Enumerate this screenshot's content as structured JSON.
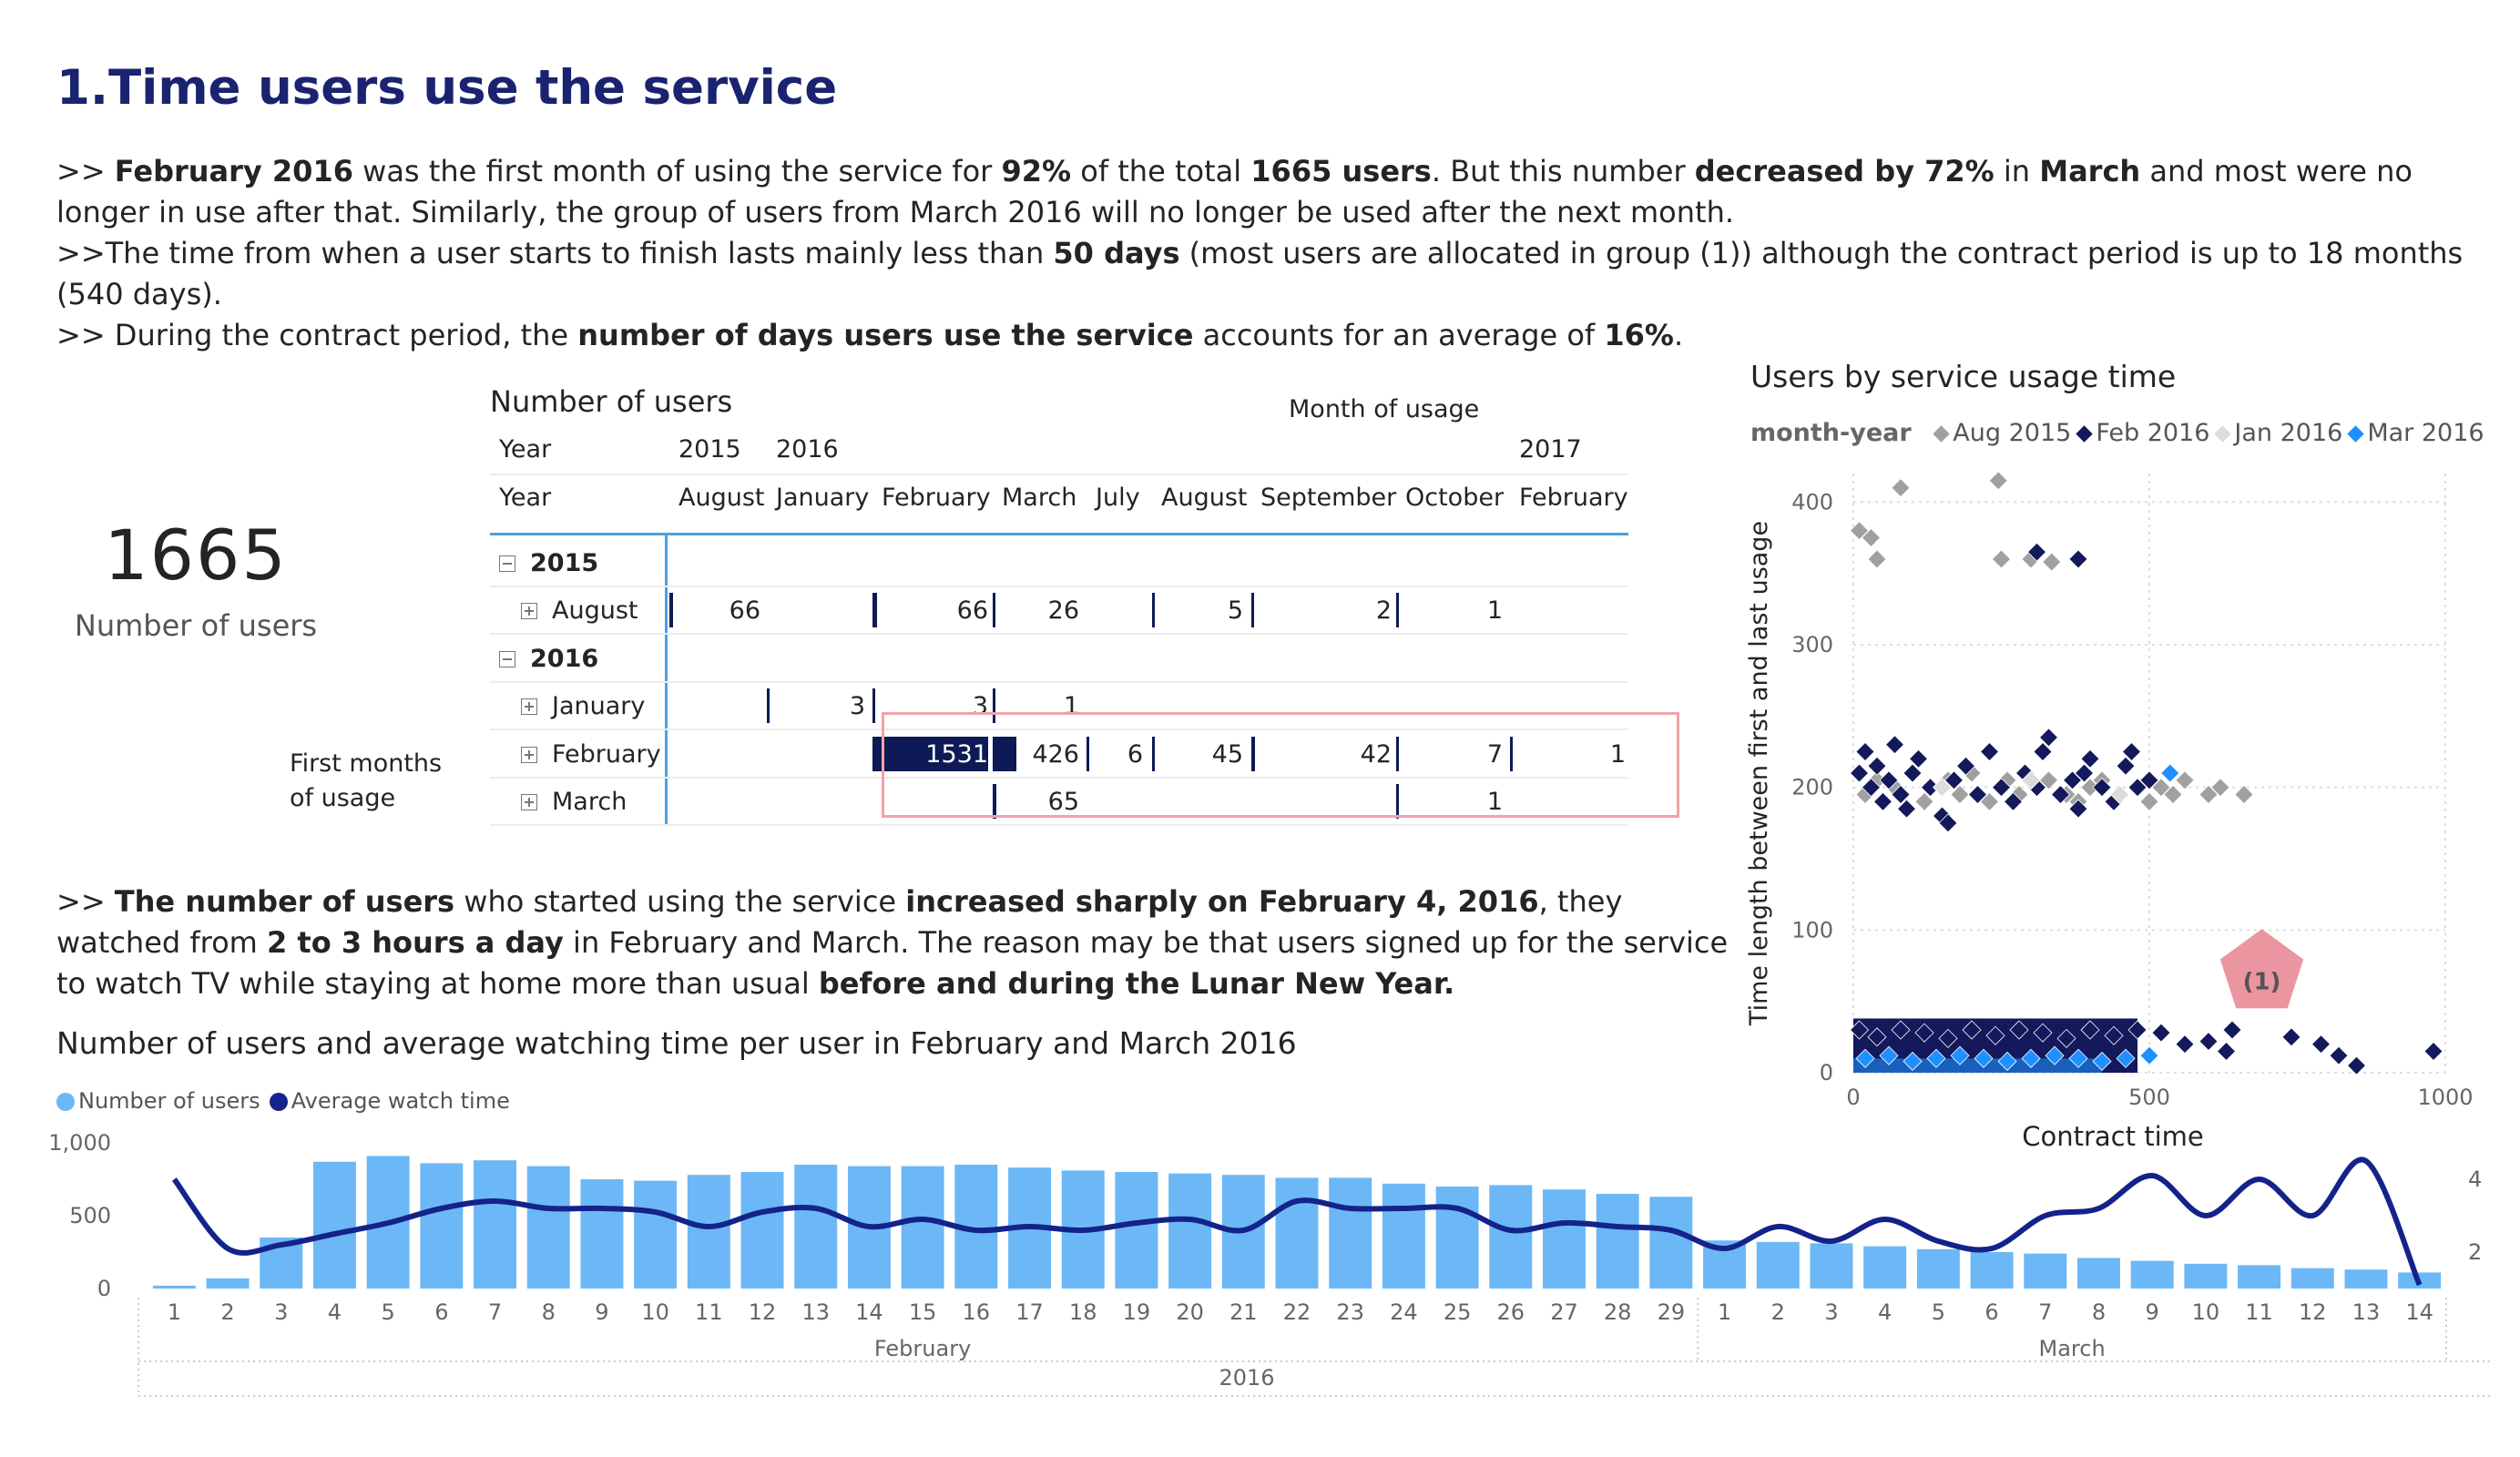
{
  "page": {
    "title": "1.Time users use the service",
    "intro": [
      [
        {
          "t": ">> "
        },
        {
          "t": "February 2016",
          "b": true
        },
        {
          "t": " was the first month of using the service for "
        },
        {
          "t": "92%",
          "b": true
        },
        {
          "t": " of the total "
        },
        {
          "t": "1665 users",
          "b": true
        },
        {
          "t": ". But this number "
        },
        {
          "t": "decreased by 72%",
          "b": true
        },
        {
          "t": " in "
        },
        {
          "t": "March",
          "b": true
        },
        {
          "t": " and most were no longer in use after that. Similarly, the group of users from March 2016 will no longer be used after the next month."
        }
      ],
      [
        {
          "t": ">>The time from when a user starts to finish lasts mainly less than "
        },
        {
          "t": "50 days",
          "b": true
        },
        {
          "t": " (most users are allocated in group (1)) although the contract period is up to 18 months (540 days)."
        }
      ],
      [
        {
          "t": ">> During the contract period, the "
        },
        {
          "t": "number of days users use the service",
          "b": true
        },
        {
          "t": " accounts for an average of "
        },
        {
          "t": "16%",
          "b": true
        },
        {
          "t": "."
        }
      ]
    ],
    "mid_text": [
      [
        {
          "t": ">> "
        },
        {
          "t": "The number of users",
          "b": true
        },
        {
          "t": " who started using the service "
        },
        {
          "t": "increased sharply on February 4, 2016",
          "b": true
        },
        {
          "t": ", they watched from "
        },
        {
          "t": "2 to 3 hours a day",
          "b": true
        },
        {
          "t": " in February and March. The reason may be that users signed up for the service to watch TV while staying at home more than usual "
        },
        {
          "t": "before and during the Lunar New Year.",
          "b": true
        }
      ]
    ]
  },
  "kpi": {
    "value": "1665",
    "label": "Number of users"
  },
  "side_label": "First months of usage",
  "matrix": {
    "title": "Number of users",
    "column_group_label": "Month of usage",
    "year_row_header": "Year",
    "month_row_header": "Year",
    "column_years": [
      "2015",
      "2016",
      "",
      "",
      "",
      "",
      "",
      "",
      "2017"
    ],
    "columns": [
      "August",
      "January",
      "February",
      "March",
      "July",
      "August",
      "September",
      "October",
      "February"
    ],
    "rows": [
      {
        "label": "2015",
        "level": 0
      },
      {
        "label": "August",
        "level": 1,
        "cells": [
          "66",
          "",
          "66",
          "26",
          "",
          "5",
          "2",
          "1",
          ""
        ]
      },
      {
        "label": "2016",
        "level": 0
      },
      {
        "label": "January",
        "level": 1,
        "cells": [
          "",
          "3",
          "3",
          "1",
          "",
          "",
          "",
          "",
          ""
        ]
      },
      {
        "label": "February",
        "level": 1,
        "cells": [
          "",
          "",
          "1531",
          "426",
          "6",
          "45",
          "42",
          "7",
          "1"
        ]
      },
      {
        "label": "March",
        "level": 1,
        "cells": [
          "",
          "",
          "",
          "65",
          "",
          "",
          "",
          "1",
          ""
        ]
      }
    ]
  },
  "bar_line_chart": {
    "title": "Number of users and average watching time per user in February and March 2016",
    "legend": [
      {
        "label": "Number of users",
        "color": "#6cb8f6"
      },
      {
        "label": "Average watch time",
        "color": "#14238a"
      }
    ],
    "y_ticks": [
      "0",
      "500",
      "1,000"
    ],
    "y2_ticks": [
      "2",
      "4"
    ],
    "month_labels": [
      "February",
      "March"
    ],
    "year_label": "2016"
  },
  "scatter": {
    "title": "Users by service usage time",
    "legend_title": "month-year",
    "legend": [
      {
        "label": "Aug 2015",
        "color": "#a0a0a0"
      },
      {
        "label": "Feb 2016",
        "color": "#13195a"
      },
      {
        "label": "Jan 2016",
        "color": "#dcdcdc"
      },
      {
        "label": "Mar 2016",
        "color": "#1e90ff"
      }
    ],
    "xlabel": "Contract time",
    "ylabel": "Time length between first and last usage",
    "x_ticks": [
      "0",
      "500",
      "1000"
    ],
    "y_ticks": [
      "0",
      "100",
      "200",
      "300",
      "400"
    ],
    "annotation": "(1)"
  },
  "chart_data": [
    {
      "type": "bar",
      "title": "Number of users and average watching time per user in February and March 2016",
      "categories": [
        "1",
        "2",
        "3",
        "4",
        "5",
        "6",
        "7",
        "8",
        "9",
        "10",
        "11",
        "12",
        "13",
        "14",
        "15",
        "16",
        "17",
        "18",
        "19",
        "20",
        "21",
        "22",
        "23",
        "24",
        "25",
        "26",
        "27",
        "28",
        "29",
        "1",
        "2",
        "3",
        "4",
        "5",
        "6",
        "7",
        "8",
        "9",
        "10",
        "11",
        "12",
        "13",
        "14"
      ],
      "category_groups": [
        {
          "label": "February",
          "count": 29
        },
        {
          "label": "March",
          "count": 14
        }
      ],
      "series": [
        {
          "name": "Number of users",
          "type": "bar",
          "axis": "left",
          "values": [
            20,
            70,
            350,
            870,
            910,
            860,
            880,
            840,
            750,
            740,
            780,
            800,
            850,
            840,
            840,
            850,
            830,
            810,
            800,
            790,
            780,
            760,
            760,
            720,
            700,
            710,
            680,
            650,
            630,
            330,
            320,
            310,
            290,
            270,
            250,
            240,
            210,
            190,
            170,
            160,
            140,
            130,
            110
          ]
        },
        {
          "name": "Average watch time",
          "type": "line",
          "axis": "right",
          "values": [
            4.0,
            2.1,
            2.2,
            2.5,
            2.8,
            3.2,
            3.4,
            3.2,
            3.2,
            3.1,
            2.7,
            3.1,
            3.2,
            2.7,
            2.9,
            2.6,
            2.7,
            2.6,
            2.8,
            2.9,
            2.6,
            3.4,
            3.2,
            3.2,
            3.2,
            2.6,
            2.8,
            2.7,
            2.6,
            2.1,
            2.7,
            2.3,
            2.9,
            2.3,
            2.1,
            3.0,
            3.2,
            4.1,
            3.0,
            4.0,
            3.0,
            4.5,
            1.1
          ]
        }
      ],
      "ylim": [
        0,
        1000
      ],
      "y2lim": [
        1,
        5
      ],
      "xlabel": "",
      "ylabel": ""
    },
    {
      "type": "scatter",
      "title": "Users by service usage time",
      "xlabel": "Contract time",
      "ylabel": "Time length between first and last usage",
      "xlim": [
        0,
        1000
      ],
      "ylim": [
        0,
        420
      ],
      "series": [
        {
          "name": "Aug 2015",
          "points": [
            [
              10,
              380
            ],
            [
              30,
              375
            ],
            [
              80,
              410
            ],
            [
              40,
              360
            ],
            [
              245,
              415
            ],
            [
              250,
              360
            ],
            [
              300,
              360
            ],
            [
              335,
              358
            ],
            [
              70,
              200
            ],
            [
              120,
              190
            ],
            [
              160,
              205
            ],
            [
              180,
              195
            ],
            [
              200,
              210
            ],
            [
              230,
              190
            ],
            [
              260,
              205
            ],
            [
              280,
              195
            ],
            [
              310,
              200
            ],
            [
              330,
              205
            ],
            [
              360,
              195
            ],
            [
              380,
              190
            ],
            [
              400,
              200
            ],
            [
              420,
              205
            ],
            [
              450,
              195
            ],
            [
              480,
              200
            ],
            [
              500,
              190
            ],
            [
              520,
              200
            ],
            [
              540,
              195
            ],
            [
              560,
              205
            ],
            [
              600,
              195
            ],
            [
              620,
              200
            ],
            [
              660,
              195
            ],
            [
              20,
              195
            ],
            [
              40,
              205
            ]
          ]
        },
        {
          "name": "Feb 2016",
          "points": [
            [
              10,
              210
            ],
            [
              20,
              225
            ],
            [
              30,
              200
            ],
            [
              40,
              215
            ],
            [
              50,
              190
            ],
            [
              60,
              205
            ],
            [
              70,
              230
            ],
            [
              80,
              195
            ],
            [
              90,
              185
            ],
            [
              100,
              210
            ],
            [
              110,
              220
            ],
            [
              130,
              200
            ],
            [
              150,
              180
            ],
            [
              160,
              175
            ],
            [
              170,
              205
            ],
            [
              190,
              215
            ],
            [
              210,
              195
            ],
            [
              230,
              225
            ],
            [
              250,
              200
            ],
            [
              270,
              190
            ],
            [
              290,
              210
            ],
            [
              310,
              200
            ],
            [
              320,
              225
            ],
            [
              330,
              235
            ],
            [
              350,
              195
            ],
            [
              370,
              205
            ],
            [
              380,
              185
            ],
            [
              390,
              210
            ],
            [
              400,
              220
            ],
            [
              420,
              200
            ],
            [
              440,
              190
            ],
            [
              460,
              215
            ],
            [
              470,
              225
            ],
            [
              480,
              200
            ],
            [
              500,
              205
            ],
            [
              310,
              365
            ],
            [
              380,
              360
            ],
            [
              10,
              30
            ],
            [
              40,
              25
            ],
            [
              80,
              30
            ],
            [
              120,
              28
            ],
            [
              160,
              24
            ],
            [
              200,
              30
            ],
            [
              240,
              26
            ],
            [
              280,
              30
            ],
            [
              320,
              28
            ],
            [
              360,
              24
            ],
            [
              400,
              30
            ],
            [
              440,
              26
            ],
            [
              480,
              30
            ],
            [
              520,
              28
            ],
            [
              560,
              20
            ],
            [
              600,
              22
            ],
            [
              630,
              15
            ],
            [
              640,
              30
            ],
            [
              740,
              25
            ],
            [
              790,
              20
            ],
            [
              820,
              12
            ],
            [
              850,
              5
            ],
            [
              980,
              15
            ]
          ]
        },
        {
          "name": "Jan 2016",
          "points": [
            [
              150,
              200
            ],
            [
              300,
              205
            ],
            [
              450,
              195
            ]
          ]
        },
        {
          "name": "Mar 2016",
          "points": [
            [
              20,
              10
            ],
            [
              60,
              12
            ],
            [
              100,
              8
            ],
            [
              140,
              10
            ],
            [
              180,
              12
            ],
            [
              220,
              10
            ],
            [
              260,
              8
            ],
            [
              300,
              10
            ],
            [
              340,
              12
            ],
            [
              380,
              10
            ],
            [
              420,
              8
            ],
            [
              460,
              10
            ],
            [
              500,
              12
            ],
            [
              535,
              210
            ]
          ]
        }
      ]
    }
  ]
}
